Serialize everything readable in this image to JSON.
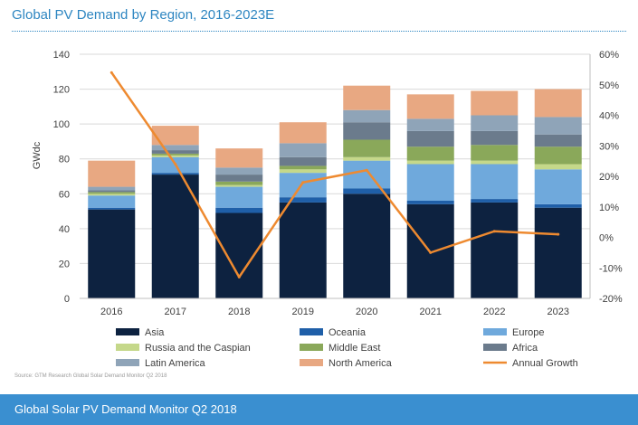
{
  "chart_data": {
    "type": "bar",
    "stacked": true,
    "title": "Global PV Demand by Region, 2016-2023E",
    "ylabel": "GWdc",
    "ylim": [
      0,
      140
    ],
    "yticks": [
      "0",
      "20",
      "40",
      "60",
      "80",
      "100",
      "120",
      "140"
    ],
    "y2lim": [
      -20,
      60
    ],
    "y2ticks": [
      "-20%",
      "-10%",
      "0%",
      "10%",
      "20%",
      "30%",
      "40%",
      "50%",
      "60%"
    ],
    "categories": [
      "2016",
      "2017",
      "2018",
      "2019",
      "2020",
      "2021",
      "2022",
      "2023"
    ],
    "grid": true,
    "legend_position": "bottom",
    "series": [
      {
        "name": "Asia",
        "color": "#0d2240",
        "values": [
          51,
          71,
          49,
          55,
          60,
          54,
          55,
          52
        ]
      },
      {
        "name": "Oceania",
        "color": "#1f5fa8",
        "values": [
          1,
          1,
          3,
          3,
          3,
          2,
          2,
          2
        ]
      },
      {
        "name": "Europe",
        "color": "#6fa9dc",
        "values": [
          7,
          9,
          12,
          14,
          16,
          21,
          20,
          20
        ]
      },
      {
        "name": "Russia and the Caspian",
        "color": "#c5d88a",
        "values": [
          1,
          1,
          1,
          2,
          2,
          2,
          2,
          3
        ]
      },
      {
        "name": "Middle East",
        "color": "#8aa85a",
        "values": [
          1,
          1,
          2,
          2,
          10,
          8,
          9,
          10
        ]
      },
      {
        "name": "Africa",
        "color": "#6b7b8c",
        "values": [
          1,
          2,
          4,
          5,
          10,
          9,
          8,
          7
        ]
      },
      {
        "name": "Latin America",
        "color": "#8fa4b8",
        "values": [
          2,
          3,
          4,
          8,
          7,
          7,
          9,
          10
        ]
      },
      {
        "name": "North America",
        "color": "#e8a882",
        "values": [
          15,
          11,
          11,
          12,
          14,
          14,
          14,
          16
        ]
      }
    ],
    "line_series": {
      "name": "Annual Growth",
      "color": "#ee8a30",
      "axis": "right",
      "values": [
        54,
        24,
        -13,
        18,
        22,
        -5,
        2,
        1
      ]
    }
  },
  "source_note": "Source: GTM Research Global Solar Demand Monitor Q2 2018",
  "footer": {
    "text": "Global Solar PV Demand Monitor Q2 2018"
  }
}
